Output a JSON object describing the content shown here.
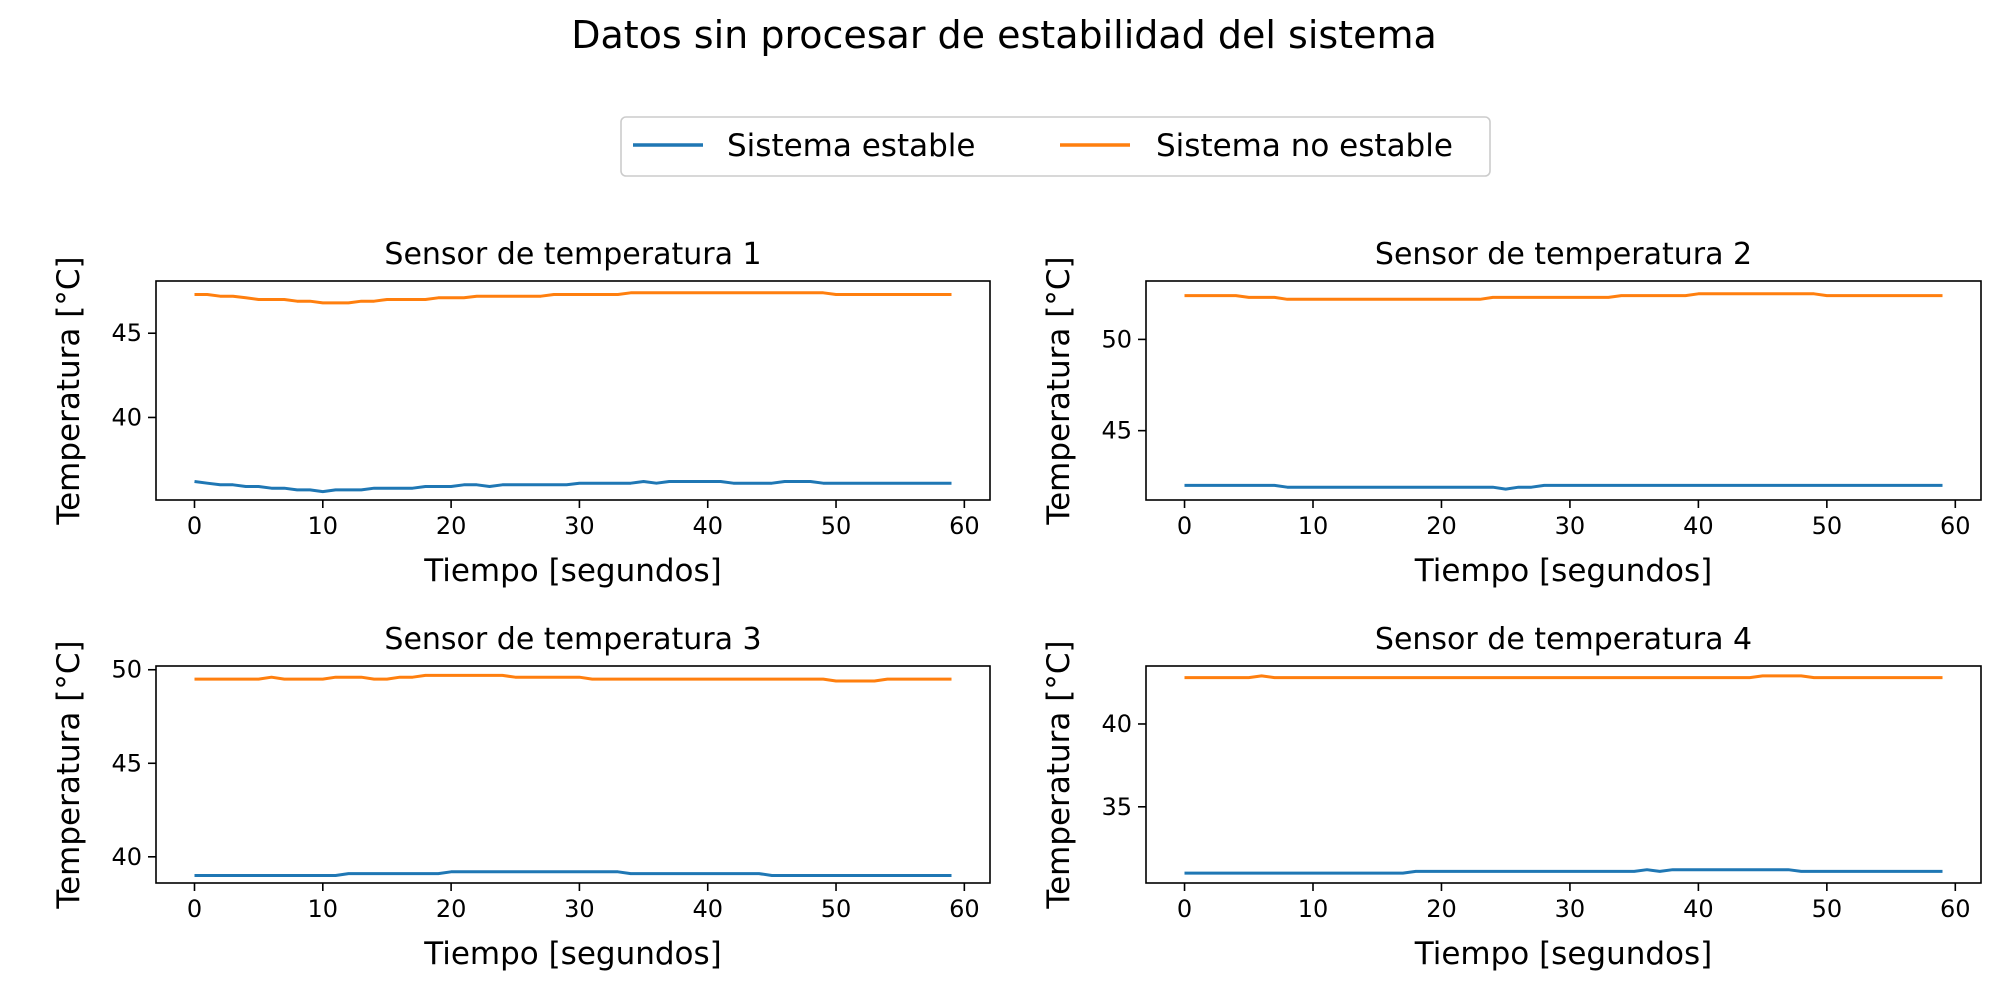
{
  "figure": {
    "title": "Datos sin procesar de estabilidad del sistema",
    "legend": {
      "placement": "top-center",
      "entries": [
        {
          "label": "Sistema estable",
          "color": "#1f77b4"
        },
        {
          "label": "Sistema no estable",
          "color": "#ff7f0e"
        }
      ]
    }
  },
  "chart_data": [
    {
      "type": "line",
      "title": "Sensor de temperatura 1",
      "xlabel": "Tiempo [segundos]",
      "ylabel": "Temperatura [°C]",
      "xlim": [
        -3,
        62
      ],
      "ylim": [
        35.1,
        48.1
      ],
      "xticks": [
        0,
        10,
        20,
        30,
        40,
        50,
        60
      ],
      "yticks": [
        40,
        45
      ],
      "grid": false,
      "x_start": 0,
      "x_step": 1,
      "series": [
        {
          "name": "Sistema estable",
          "color": "#1f77b4",
          "values": [
            36.2,
            36.1,
            36.0,
            36.0,
            35.9,
            35.9,
            35.8,
            35.8,
            35.7,
            35.7,
            35.6,
            35.7,
            35.7,
            35.7,
            35.8,
            35.8,
            35.8,
            35.8,
            35.9,
            35.9,
            35.9,
            36.0,
            36.0,
            35.9,
            36.0,
            36.0,
            36.0,
            36.0,
            36.0,
            36.0,
            36.1,
            36.1,
            36.1,
            36.1,
            36.1,
            36.2,
            36.1,
            36.2,
            36.2,
            36.2,
            36.2,
            36.2,
            36.1,
            36.1,
            36.1,
            36.1,
            36.2,
            36.2,
            36.2,
            36.1,
            36.1,
            36.1,
            36.1,
            36.1,
            36.1,
            36.1,
            36.1,
            36.1,
            36.1,
            36.1
          ]
        },
        {
          "name": "Sistema no estable",
          "color": "#ff7f0e",
          "values": [
            47.3,
            47.3,
            47.2,
            47.2,
            47.1,
            47.0,
            47.0,
            47.0,
            46.9,
            46.9,
            46.8,
            46.8,
            46.8,
            46.9,
            46.9,
            47.0,
            47.0,
            47.0,
            47.0,
            47.1,
            47.1,
            47.1,
            47.2,
            47.2,
            47.2,
            47.2,
            47.2,
            47.2,
            47.3,
            47.3,
            47.3,
            47.3,
            47.3,
            47.3,
            47.4,
            47.4,
            47.4,
            47.4,
            47.4,
            47.4,
            47.4,
            47.4,
            47.4,
            47.4,
            47.4,
            47.4,
            47.4,
            47.4,
            47.4,
            47.4,
            47.3,
            47.3,
            47.3,
            47.3,
            47.3,
            47.3,
            47.3,
            47.3,
            47.3,
            47.3
          ]
        }
      ]
    },
    {
      "type": "line",
      "title": "Sensor de temperatura 2",
      "xlabel": "Tiempo [segundos]",
      "ylabel": "Temperatura [°C]",
      "xlim": [
        -3,
        62
      ],
      "ylim": [
        41.2,
        53.2
      ],
      "xticks": [
        0,
        10,
        20,
        30,
        40,
        50,
        60
      ],
      "yticks": [
        45,
        50
      ],
      "grid": false,
      "x_start": 0,
      "x_step": 1,
      "series": [
        {
          "name": "Sistema estable",
          "color": "#1f77b4",
          "values": [
            42.0,
            42.0,
            42.0,
            42.0,
            42.0,
            42.0,
            42.0,
            42.0,
            41.9,
            41.9,
            41.9,
            41.9,
            41.9,
            41.9,
            41.9,
            41.9,
            41.9,
            41.9,
            41.9,
            41.9,
            41.9,
            41.9,
            41.9,
            41.9,
            41.9,
            41.8,
            41.9,
            41.9,
            42.0,
            42.0,
            42.0,
            42.0,
            42.0,
            42.0,
            42.0,
            42.0,
            42.0,
            42.0,
            42.0,
            42.0,
            42.0,
            42.0,
            42.0,
            42.0,
            42.0,
            42.0,
            42.0,
            42.0,
            42.0,
            42.0,
            42.0,
            42.0,
            42.0,
            42.0,
            42.0,
            42.0,
            42.0,
            42.0,
            42.0,
            42.0
          ]
        },
        {
          "name": "Sistema no estable",
          "color": "#ff7f0e",
          "values": [
            52.4,
            52.4,
            52.4,
            52.4,
            52.4,
            52.3,
            52.3,
            52.3,
            52.2,
            52.2,
            52.2,
            52.2,
            52.2,
            52.2,
            52.2,
            52.2,
            52.2,
            52.2,
            52.2,
            52.2,
            52.2,
            52.2,
            52.2,
            52.2,
            52.3,
            52.3,
            52.3,
            52.3,
            52.3,
            52.3,
            52.3,
            52.3,
            52.3,
            52.3,
            52.4,
            52.4,
            52.4,
            52.4,
            52.4,
            52.4,
            52.5,
            52.5,
            52.5,
            52.5,
            52.5,
            52.5,
            52.5,
            52.5,
            52.5,
            52.5,
            52.4,
            52.4,
            52.4,
            52.4,
            52.4,
            52.4,
            52.4,
            52.4,
            52.4,
            52.4
          ]
        }
      ]
    },
    {
      "type": "line",
      "title": "Sensor de temperatura 3",
      "xlabel": "Tiempo [segundos]",
      "ylabel": "Temperatura [°C]",
      "xlim": [
        -3,
        62
      ],
      "ylim": [
        38.6,
        50.2
      ],
      "xticks": [
        0,
        10,
        20,
        30,
        40,
        50,
        60
      ],
      "yticks": [
        40,
        45,
        50
      ],
      "grid": false,
      "x_start": 0,
      "x_step": 1,
      "series": [
        {
          "name": "Sistema estable",
          "color": "#1f77b4",
          "values": [
            39.0,
            39.0,
            39.0,
            39.0,
            39.0,
            39.0,
            39.0,
            39.0,
            39.0,
            39.0,
            39.0,
            39.0,
            39.1,
            39.1,
            39.1,
            39.1,
            39.1,
            39.1,
            39.1,
            39.1,
            39.2,
            39.2,
            39.2,
            39.2,
            39.2,
            39.2,
            39.2,
            39.2,
            39.2,
            39.2,
            39.2,
            39.2,
            39.2,
            39.2,
            39.1,
            39.1,
            39.1,
            39.1,
            39.1,
            39.1,
            39.1,
            39.1,
            39.1,
            39.1,
            39.1,
            39.0,
            39.0,
            39.0,
            39.0,
            39.0,
            39.0,
            39.0,
            39.0,
            39.0,
            39.0,
            39.0,
            39.0,
            39.0,
            39.0,
            39.0
          ]
        },
        {
          "name": "Sistema no estable",
          "color": "#ff7f0e",
          "values": [
            49.5,
            49.5,
            49.5,
            49.5,
            49.5,
            49.5,
            49.6,
            49.5,
            49.5,
            49.5,
            49.5,
            49.6,
            49.6,
            49.6,
            49.5,
            49.5,
            49.6,
            49.6,
            49.7,
            49.7,
            49.7,
            49.7,
            49.7,
            49.7,
            49.7,
            49.6,
            49.6,
            49.6,
            49.6,
            49.6,
            49.6,
            49.5,
            49.5,
            49.5,
            49.5,
            49.5,
            49.5,
            49.5,
            49.5,
            49.5,
            49.5,
            49.5,
            49.5,
            49.5,
            49.5,
            49.5,
            49.5,
            49.5,
            49.5,
            49.5,
            49.4,
            49.4,
            49.4,
            49.4,
            49.5,
            49.5,
            49.5,
            49.5,
            49.5,
            49.5
          ]
        }
      ]
    },
    {
      "type": "line",
      "title": "Sensor de temperatura 4",
      "xlabel": "Tiempo [segundos]",
      "ylabel": "Temperatura [°C]",
      "xlim": [
        -3,
        62
      ],
      "ylim": [
        30.4,
        43.5
      ],
      "xticks": [
        0,
        10,
        20,
        30,
        40,
        50,
        60
      ],
      "yticks": [
        35,
        40
      ],
      "grid": false,
      "x_start": 0,
      "x_step": 1,
      "series": [
        {
          "name": "Sistema estable",
          "color": "#1f77b4",
          "values": [
            31.0,
            31.0,
            31.0,
            31.0,
            31.0,
            31.0,
            31.0,
            31.0,
            31.0,
            31.0,
            31.0,
            31.0,
            31.0,
            31.0,
            31.0,
            31.0,
            31.0,
            31.0,
            31.1,
            31.1,
            31.1,
            31.1,
            31.1,
            31.1,
            31.1,
            31.1,
            31.1,
            31.1,
            31.1,
            31.1,
            31.1,
            31.1,
            31.1,
            31.1,
            31.1,
            31.1,
            31.2,
            31.1,
            31.2,
            31.2,
            31.2,
            31.2,
            31.2,
            31.2,
            31.2,
            31.2,
            31.2,
            31.2,
            31.1,
            31.1,
            31.1,
            31.1,
            31.1,
            31.1,
            31.1,
            31.1,
            31.1,
            31.1,
            31.1,
            31.1
          ]
        },
        {
          "name": "Sistema no estable",
          "color": "#ff7f0e",
          "values": [
            42.8,
            42.8,
            42.8,
            42.8,
            42.8,
            42.8,
            42.9,
            42.8,
            42.8,
            42.8,
            42.8,
            42.8,
            42.8,
            42.8,
            42.8,
            42.8,
            42.8,
            42.8,
            42.8,
            42.8,
            42.8,
            42.8,
            42.8,
            42.8,
            42.8,
            42.8,
            42.8,
            42.8,
            42.8,
            42.8,
            42.8,
            42.8,
            42.8,
            42.8,
            42.8,
            42.8,
            42.8,
            42.8,
            42.8,
            42.8,
            42.8,
            42.8,
            42.8,
            42.8,
            42.8,
            42.9,
            42.9,
            42.9,
            42.9,
            42.8,
            42.8,
            42.8,
            42.8,
            42.8,
            42.8,
            42.8,
            42.8,
            42.8,
            42.8,
            42.8
          ]
        }
      ]
    }
  ]
}
